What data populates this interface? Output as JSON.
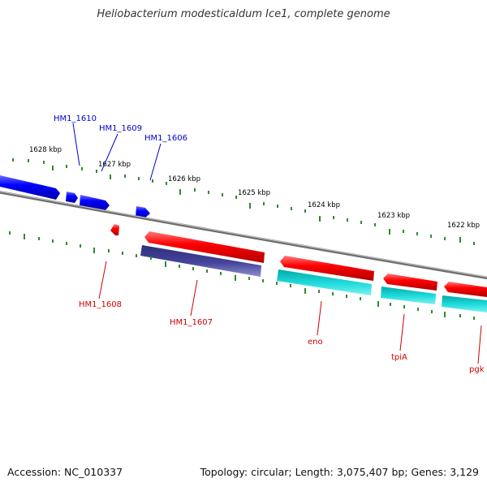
{
  "title": "Heliobacterium modesticaldum Ice1, complete genome",
  "footer": {
    "accession": "Accession: NC_010337",
    "summary": "Topology: circular; Length: 3,075,407 bp; Genes: 3,129"
  },
  "colors": {
    "forward_gene": "#0000ff",
    "reverse_gene": "#ff0000",
    "reverse_cds": "#00c8c8",
    "rna_gene": "#3f3f8a",
    "backbone": "#808080",
    "ticks": "#2f8a2f",
    "forward_label": "#0000cc",
    "reverse_label": "#cc0000"
  },
  "scale_labels": [
    "1628 kbp",
    "1627 kbp",
    "1626 kbp",
    "1625 kbp",
    "1624 kbp",
    "1623 kbp",
    "1622 kbp"
  ],
  "forward_labels": [
    "HM1_1610",
    "HM1_1609",
    "HM1_1606"
  ],
  "reverse_labels": [
    "HM1_1608",
    "HM1_1607",
    "eno",
    "tpiA",
    "pgk"
  ]
}
